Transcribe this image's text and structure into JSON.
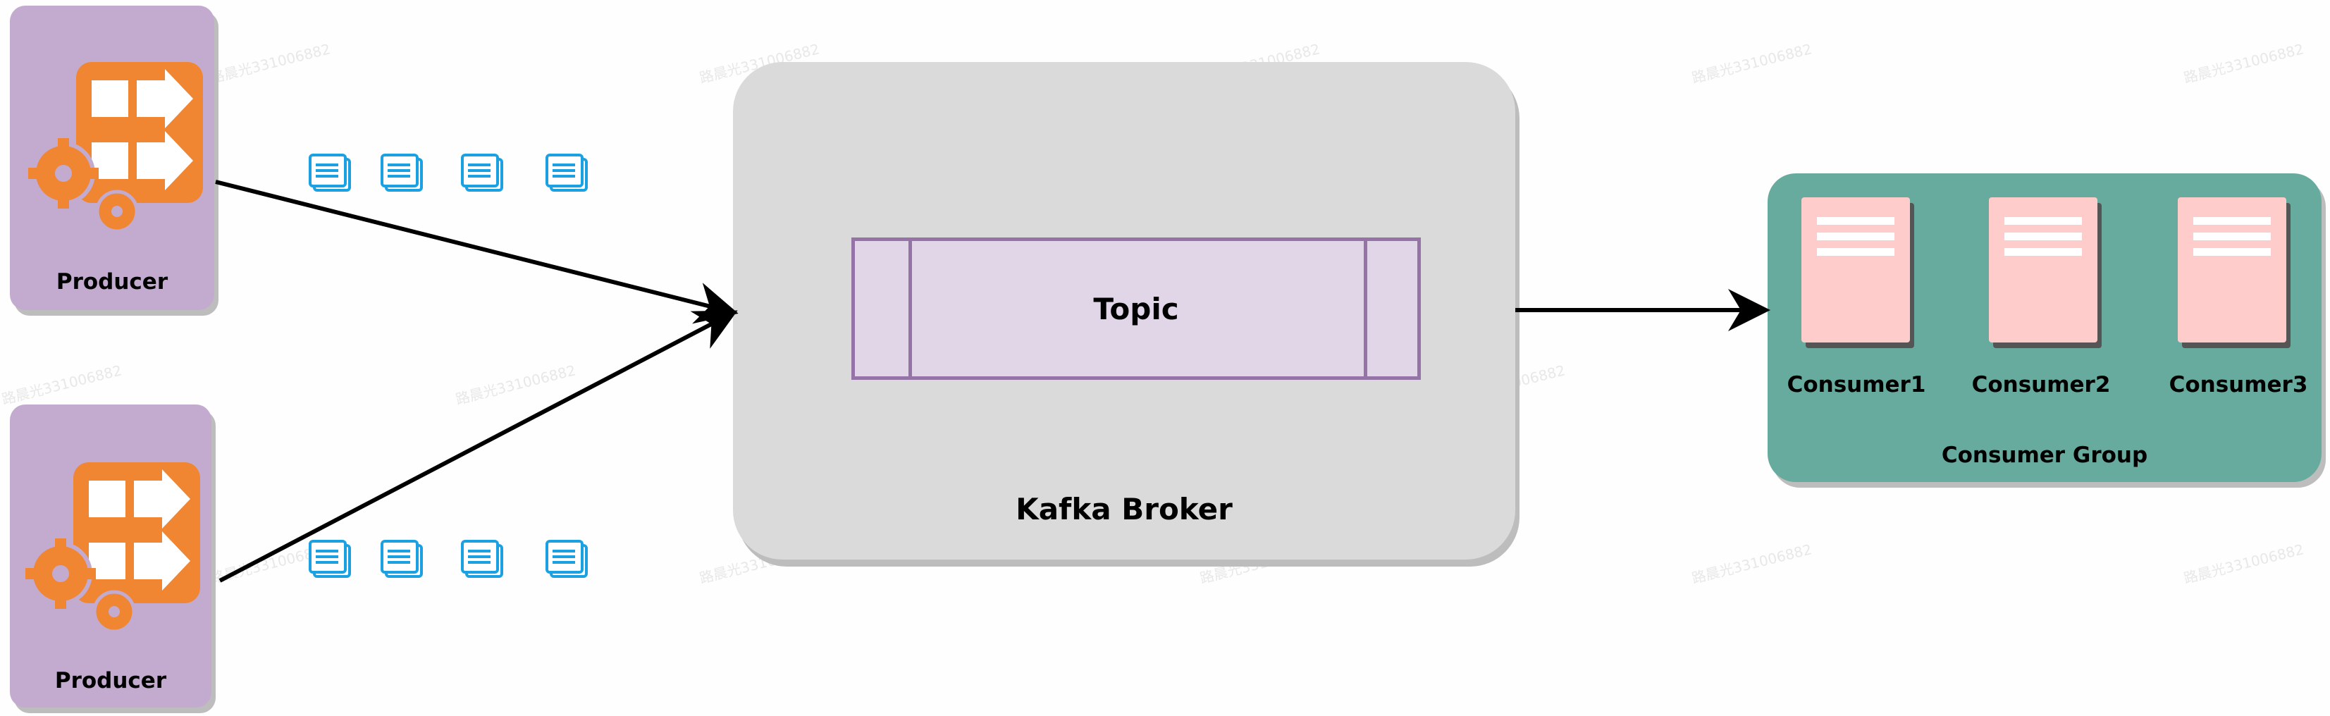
{
  "producers": [
    {
      "label": "Producer"
    },
    {
      "label": "Producer"
    }
  ],
  "broker": {
    "label": "Kafka Broker",
    "topic_label": "Topic"
  },
  "consumer_group": {
    "label": "Consumer Group",
    "consumers": [
      {
        "label": "Consumer1"
      },
      {
        "label": "Consumer2"
      },
      {
        "label": "Consumer3"
      }
    ]
  },
  "watermark_text": "路晨光331006882",
  "colors": {
    "producer_fill": "#c3abd0",
    "producer_icon": "#f08532",
    "broker_fill": "#dadada",
    "topic_fill": "#e1d5e8",
    "topic_stroke": "#9673a6",
    "group_fill": "#67ab9f",
    "consumer_fill": "#ffcccc",
    "message_icon": "#1ba1e2",
    "arrow": "#000000"
  },
  "icons": {
    "producer": "workflow-gears-icon",
    "message": "message-document-icon",
    "consumer": "server-document-icon"
  }
}
